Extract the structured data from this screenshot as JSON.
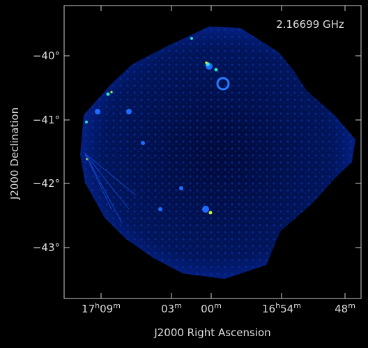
{
  "figure": {
    "annotation": "2.16699 GHz",
    "x_axis_title": "J2000 Right Ascension",
    "y_axis_title": "J2000 Declination",
    "y_tick_labels": [
      "−40°",
      "−41°",
      "−42°",
      "−43°"
    ],
    "x_tick_labels": [
      [
        "17",
        "h",
        "09",
        "m"
      ],
      [
        "03",
        "m"
      ],
      [
        "00",
        "m"
      ],
      [
        "16",
        "h",
        "54",
        "m"
      ],
      [
        "48",
        "m"
      ]
    ]
  }
}
